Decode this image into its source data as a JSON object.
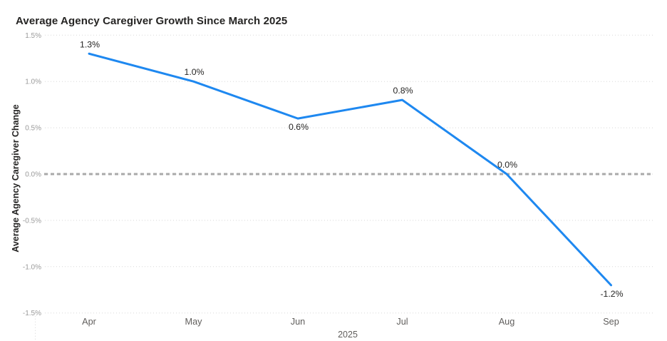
{
  "page": {
    "background": "#ffffff"
  },
  "chart_data": {
    "type": "line",
    "title": "Average Agency Caregiver Growth Since March 2025",
    "xlabel": "2025",
    "ylabel": "Average Agency Caregiver Change",
    "x": [
      "Apr",
      "May",
      "Jun",
      "Jul",
      "Aug",
      "Sep"
    ],
    "series": [
      {
        "name": "Average Agency Caregiver Change",
        "values": [
          1.3,
          1.0,
          0.6,
          0.8,
          0.0,
          -1.2
        ]
      }
    ],
    "data_labels": [
      "1.3%",
      "1.0%",
      "0.6%",
      "0.8%",
      "0.0%",
      "-1.2%"
    ],
    "label_positions": [
      "above",
      "above",
      "below",
      "above",
      "above",
      "below"
    ],
    "ylim": [
      -1.5,
      1.5
    ],
    "ytick_step": 0.5,
    "ytick_labels": [
      "1.5%",
      "1.0%",
      "0.5%",
      "0.0%",
      "-0.5%",
      "-1.0%",
      "-1.5%"
    ],
    "grid": "dotted horizontal gridlines at each y tick",
    "zero_line": "dashed gray emphasis line at 0.0%",
    "legend": "none",
    "colors": {
      "line": "#1E88F0",
      "zero_line": "#a9a9a9",
      "gridline": "#d8d8d8",
      "ytick_label": "#9a9a9a",
      "xtick_label": "#605E5C",
      "axis_title": "#252423",
      "chart_title": "#252423",
      "data_label": "#252423"
    }
  }
}
